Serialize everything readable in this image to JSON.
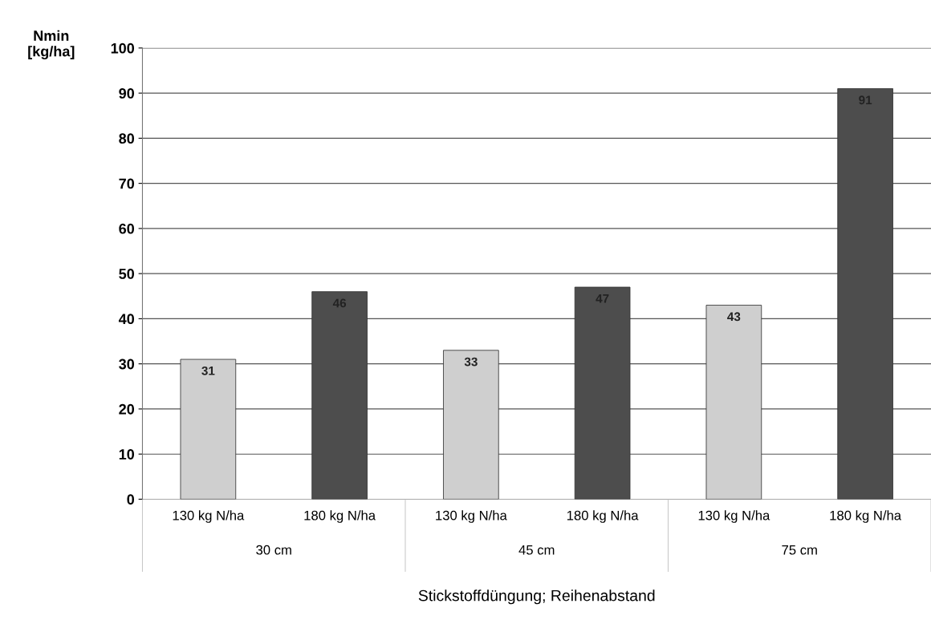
{
  "chart_data": {
    "type": "bar",
    "ylabel": "Nmin\n[kg/ha]",
    "xlabel": "Stickstoffdüngung; Reihenabstand",
    "categories": [
      "130 kg N/ha",
      "180 kg N/ha",
      "130 kg N/ha",
      "180 kg N/ha",
      "130 kg N/ha",
      "180 kg N/ha"
    ],
    "values": [
      31,
      46,
      33,
      47,
      43,
      91
    ],
    "colors": [
      "#cfcfcf",
      "#4d4d4d",
      "#cfcfcf",
      "#4d4d4d",
      "#cfcfcf",
      "#4d4d4d"
    ],
    "annotations": [
      "30 cm",
      "45 cm",
      "75 cm"
    ],
    "ylim": [
      0,
      100
    ],
    "yticks": [
      0,
      10,
      20,
      30,
      40,
      50,
      60,
      70,
      80,
      90,
      100
    ],
    "grid": "y",
    "data_labels": true,
    "legend": false
  }
}
